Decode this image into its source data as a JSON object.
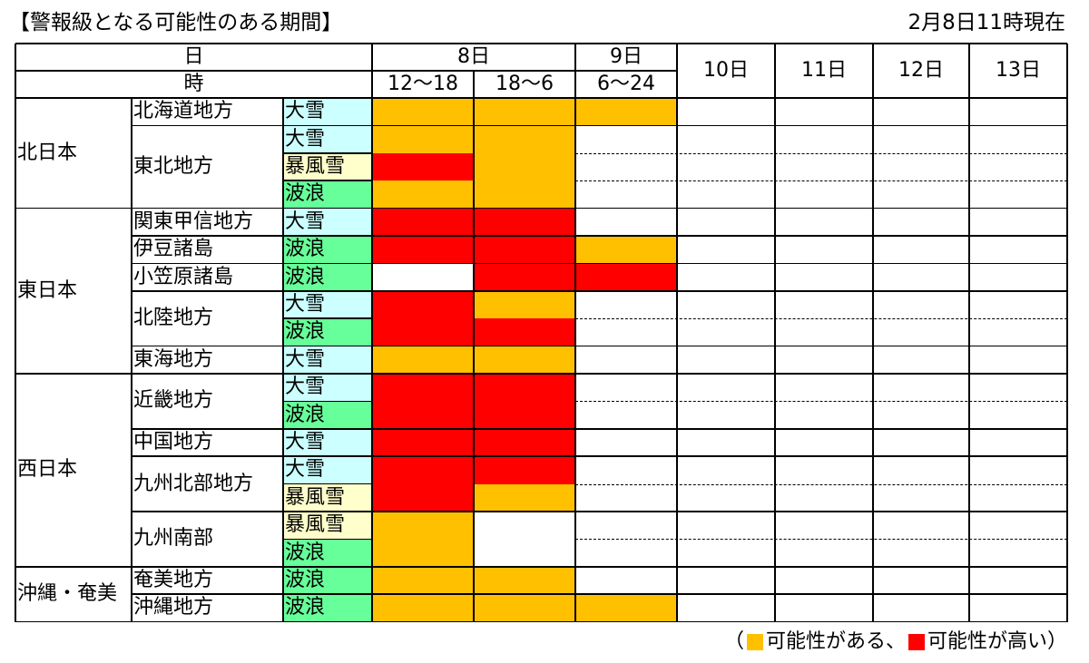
{
  "title": "【警報級となる可能性のある期間】",
  "as_of": "2月8日11時現在",
  "colors": {
    "possible": "#FFC000",
    "high": "#FF0000",
    "taisetsu": "#CCFFFF",
    "bofusetsu": "#FFFFCC",
    "haro": "#66FF99"
  },
  "header": {
    "day_label": "日",
    "hour_label": "時",
    "days": [
      {
        "label": "8日",
        "periods": [
          "12～18",
          "18～6"
        ]
      },
      {
        "label": "9日",
        "periods": [
          "6～24"
        ]
      },
      {
        "label": "10日",
        "periods": []
      },
      {
        "label": "11日",
        "periods": []
      },
      {
        "label": "12日",
        "periods": []
      },
      {
        "label": "13日",
        "periods": []
      }
    ]
  },
  "legend": {
    "open": "（",
    "possible_label": "可能性がある、",
    "high_label": "可能性が高い）"
  },
  "table": [
    {
      "region": "北日本",
      "areas": [
        {
          "name": "北海道地方",
          "warnings": [
            {
              "type": "大雪",
              "levels": [
                "possible",
                "possible",
                "possible"
              ]
            }
          ]
        },
        {
          "name": "東北地方",
          "warnings": [
            {
              "type": "大雪",
              "levels": [
                "possible",
                "possible",
                null
              ]
            },
            {
              "type": "暴風雪",
              "levels": [
                "high",
                "possible",
                null
              ]
            },
            {
              "type": "波浪",
              "levels": [
                "possible",
                "possible",
                null
              ]
            }
          ]
        }
      ]
    },
    {
      "region": "東日本",
      "areas": [
        {
          "name": "関東甲信地方",
          "warnings": [
            {
              "type": "大雪",
              "levels": [
                "high",
                "high",
                null
              ]
            }
          ]
        },
        {
          "name": "伊豆諸島",
          "warnings": [
            {
              "type": "波浪",
              "levels": [
                "high",
                "high",
                "possible"
              ]
            }
          ]
        },
        {
          "name": "小笠原諸島",
          "warnings": [
            {
              "type": "波浪",
              "levels": [
                null,
                "high",
                "high"
              ]
            }
          ]
        },
        {
          "name": "北陸地方",
          "warnings": [
            {
              "type": "大雪",
              "levels": [
                "high",
                "possible",
                null
              ]
            },
            {
              "type": "波浪",
              "levels": [
                "high",
                "high",
                null
              ]
            }
          ]
        },
        {
          "name": "東海地方",
          "warnings": [
            {
              "type": "大雪",
              "levels": [
                "possible",
                "possible",
                null
              ]
            }
          ]
        }
      ]
    },
    {
      "region": "西日本",
      "areas": [
        {
          "name": "近畿地方",
          "warnings": [
            {
              "type": "大雪",
              "levels": [
                "high",
                "high",
                null
              ]
            },
            {
              "type": "波浪",
              "levels": [
                "high",
                "high",
                null
              ]
            }
          ]
        },
        {
          "name": "中国地方",
          "warnings": [
            {
              "type": "大雪",
              "levels": [
                "high",
                "high",
                null
              ]
            }
          ]
        },
        {
          "name": "九州北部地方",
          "warnings": [
            {
              "type": "大雪",
              "levels": [
                "high",
                "high",
                null
              ]
            },
            {
              "type": "暴風雪",
              "levels": [
                "high",
                "possible",
                null
              ]
            }
          ]
        },
        {
          "name": "九州南部",
          "warnings": [
            {
              "type": "暴風雪",
              "levels": [
                "possible",
                null,
                null
              ]
            },
            {
              "type": "波浪",
              "levels": [
                "possible",
                null,
                null
              ]
            }
          ]
        }
      ]
    },
    {
      "region": "沖縄・奄美",
      "areas": [
        {
          "name": "奄美地方",
          "warnings": [
            {
              "type": "波浪",
              "levels": [
                "possible",
                "possible",
                null
              ]
            }
          ]
        },
        {
          "name": "沖縄地方",
          "warnings": [
            {
              "type": "波浪",
              "levels": [
                "possible",
                "possible",
                "possible"
              ]
            }
          ]
        }
      ]
    }
  ]
}
